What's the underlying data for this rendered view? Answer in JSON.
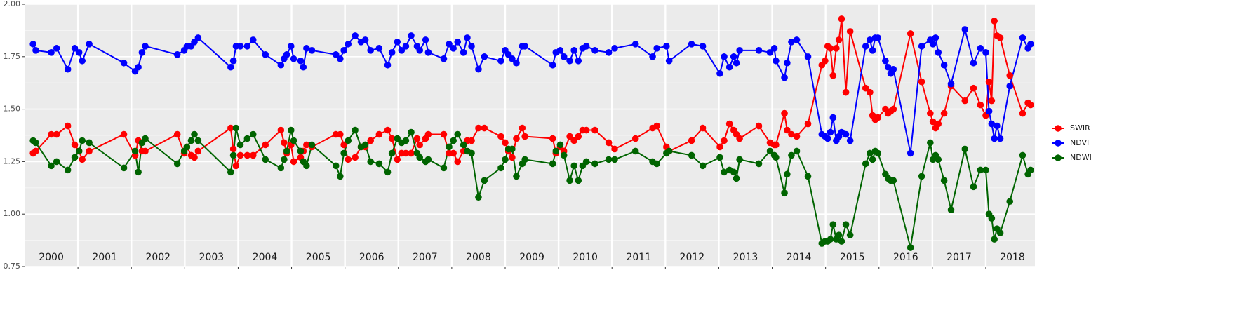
{
  "chart_data": {
    "type": "line",
    "xlim": [
      2000,
      2018.92
    ],
    "xticks": [
      2001,
      2002,
      2003,
      2004,
      2005,
      2006,
      2007,
      2008,
      2009,
      2010,
      2011,
      2012,
      2013,
      2014,
      2015,
      2016,
      2017,
      2018
    ],
    "ylim": [
      0.75,
      2.0
    ],
    "yticks": [
      0.75,
      {
        "value": 1,
        "label": "1.00"
      },
      1.25,
      {
        "value": 1.5,
        "label": "1.50"
      },
      1.75,
      {
        "value": 2,
        "label": "2.00"
      }
    ],
    "grid": true,
    "legend": "right",
    "categories": [
      "2000",
      "2001",
      "2002",
      "2003",
      "2004",
      "2005",
      "2006",
      "2007",
      "2008",
      "2009",
      "2010",
      "2011",
      "2012",
      "2013",
      "2014",
      "2015",
      "2016",
      "2017",
      "2018"
    ],
    "x": [
      2000.16,
      2000.21,
      2000.5,
      2000.6,
      2000.81,
      2000.94,
      2001.02,
      2001.08,
      2001.21,
      2001.86,
      2002.07,
      2002.13,
      2002.2,
      2002.26,
      2002.86,
      2002.99,
      2003.04,
      2003.12,
      2003.18,
      2003.25,
      2003.86,
      2003.91,
      2003.96,
      2004.04,
      2004.17,
      2004.28,
      2004.51,
      2004.8,
      2004.86,
      2004.91,
      2004.99,
      2005.04,
      2005.17,
      2005.22,
      2005.28,
      2005.38,
      2005.83,
      2005.91,
      2005.98,
      2006.06,
      2006.19,
      2006.3,
      2006.38,
      2006.48,
      2006.64,
      2006.8,
      2006.88,
      2006.98,
      2007.06,
      2007.14,
      2007.24,
      2007.35,
      2007.4,
      2007.51,
      2007.56,
      2007.85,
      2007.95,
      2008.03,
      2008.11,
      2008.22,
      2008.29,
      2008.37,
      2008.5,
      2008.61,
      2008.92,
      2009.0,
      2009.06,
      2009.13,
      2009.21,
      2009.32,
      2009.37,
      2009.89,
      2009.95,
      2010.03,
      2010.1,
      2010.21,
      2010.29,
      2010.37,
      2010.45,
      2010.52,
      2010.68,
      2010.94,
      2011.05,
      2011.44,
      2011.76,
      2011.84,
      2012.02,
      2012.07,
      2012.49,
      2012.7,
      2013.02,
      2013.1,
      2013.2,
      2013.28,
      2013.33,
      2013.39,
      2013.75,
      2013.96,
      2014.04,
      2014.07,
      2014.23,
      2014.28,
      2014.36,
      2014.46,
      2014.67,
      2014.93,
      2014.99,
      2015.04,
      2015.09,
      2015.14,
      2015.2,
      2015.25,
      2015.3,
      2015.38,
      2015.46,
      2015.75,
      2015.83,
      2015.88,
      2015.93,
      2015.98,
      2016.12,
      2016.17,
      2016.22,
      2016.27,
      2016.59,
      2016.8,
      2016.96,
      2017.01,
      2017.06,
      2017.11,
      2017.22,
      2017.35,
      2017.61,
      2017.77,
      2017.9,
      2018.0,
      2018.06,
      2018.11,
      2018.16,
      2018.21,
      2018.27,
      2018.45,
      2018.69,
      2018.79,
      2018.84
    ],
    "series": [
      {
        "name": "SWIR",
        "color": "#ff0000",
        "values": [
          1.29,
          1.3,
          1.38,
          1.38,
          1.42,
          1.33,
          1.3,
          1.26,
          1.3,
          1.38,
          1.28,
          1.35,
          1.3,
          1.3,
          1.38,
          1.29,
          1.32,
          1.28,
          1.27,
          1.3,
          1.41,
          1.31,
          1.23,
          1.28,
          1.28,
          1.28,
          1.33,
          1.4,
          1.34,
          1.29,
          1.33,
          1.25,
          1.27,
          1.3,
          1.33,
          1.32,
          1.38,
          1.38,
          1.33,
          1.26,
          1.27,
          1.32,
          1.32,
          1.35,
          1.38,
          1.4,
          1.36,
          1.26,
          1.29,
          1.29,
          1.29,
          1.36,
          1.33,
          1.36,
          1.38,
          1.38,
          1.29,
          1.29,
          1.25,
          1.3,
          1.35,
          1.35,
          1.41,
          1.41,
          1.37,
          1.34,
          1.3,
          1.27,
          1.36,
          1.41,
          1.37,
          1.36,
          1.29,
          1.32,
          1.3,
          1.37,
          1.35,
          1.37,
          1.4,
          1.4,
          1.4,
          1.34,
          1.31,
          1.36,
          1.41,
          1.42,
          1.32,
          1.3,
          1.35,
          1.41,
          1.32,
          1.35,
          1.43,
          1.4,
          1.38,
          1.36,
          1.42,
          1.34,
          1.33,
          1.33,
          1.48,
          1.4,
          1.38,
          1.37,
          1.43,
          1.71,
          1.73,
          1.8,
          1.79,
          1.66,
          1.79,
          1.83,
          1.93,
          1.58,
          1.87,
          1.6,
          1.58,
          1.47,
          1.45,
          1.46,
          1.5,
          1.48,
          1.49,
          1.5,
          1.86,
          1.63,
          1.48,
          1.44,
          1.41,
          1.43,
          1.48,
          1.61,
          1.54,
          1.6,
          1.52,
          1.47,
          1.63,
          1.54,
          1.92,
          1.85,
          1.84,
          1.66,
          1.48,
          1.53,
          1.52
        ]
      },
      {
        "name": "NDVI",
        "color": "#0000ff",
        "values": [
          1.81,
          1.78,
          1.77,
          1.79,
          1.69,
          1.79,
          1.77,
          1.73,
          1.81,
          1.72,
          1.68,
          1.7,
          1.77,
          1.8,
          1.76,
          1.78,
          1.8,
          1.8,
          1.82,
          1.84,
          1.7,
          1.73,
          1.8,
          1.8,
          1.8,
          1.83,
          1.76,
          1.71,
          1.74,
          1.76,
          1.8,
          1.74,
          1.73,
          1.7,
          1.79,
          1.78,
          1.76,
          1.74,
          1.78,
          1.81,
          1.85,
          1.82,
          1.83,
          1.78,
          1.79,
          1.71,
          1.77,
          1.82,
          1.78,
          1.8,
          1.85,
          1.8,
          1.78,
          1.83,
          1.77,
          1.74,
          1.81,
          1.79,
          1.82,
          1.77,
          1.84,
          1.8,
          1.69,
          1.75,
          1.73,
          1.78,
          1.76,
          1.74,
          1.72,
          1.8,
          1.8,
          1.71,
          1.77,
          1.78,
          1.75,
          1.73,
          1.78,
          1.73,
          1.79,
          1.8,
          1.78,
          1.77,
          1.79,
          1.81,
          1.75,
          1.79,
          1.8,
          1.73,
          1.81,
          1.8,
          1.67,
          1.75,
          1.7,
          1.75,
          1.72,
          1.78,
          1.78,
          1.77,
          1.79,
          1.73,
          1.65,
          1.72,
          1.82,
          1.83,
          1.75,
          1.38,
          1.37,
          1.36,
          1.39,
          1.46,
          1.35,
          1.37,
          1.39,
          1.38,
          1.35,
          1.8,
          1.83,
          1.78,
          1.84,
          1.84,
          1.73,
          1.7,
          1.67,
          1.69,
          1.29,
          1.8,
          1.83,
          1.81,
          1.84,
          1.77,
          1.71,
          1.62,
          1.88,
          1.72,
          1.79,
          1.77,
          1.49,
          1.43,
          1.36,
          1.42,
          1.36,
          1.61,
          1.84,
          1.79,
          1.81
        ]
      },
      {
        "name": "NDWI",
        "color": "#006400",
        "values": [
          1.35,
          1.34,
          1.23,
          1.25,
          1.21,
          1.27,
          1.3,
          1.35,
          1.34,
          1.22,
          1.3,
          1.2,
          1.34,
          1.36,
          1.24,
          1.3,
          1.32,
          1.35,
          1.38,
          1.35,
          1.2,
          1.28,
          1.41,
          1.33,
          1.36,
          1.38,
          1.26,
          1.22,
          1.26,
          1.3,
          1.4,
          1.35,
          1.3,
          1.25,
          1.23,
          1.33,
          1.23,
          1.18,
          1.29,
          1.35,
          1.4,
          1.32,
          1.33,
          1.25,
          1.24,
          1.2,
          1.29,
          1.36,
          1.34,
          1.35,
          1.39,
          1.29,
          1.27,
          1.25,
          1.26,
          1.22,
          1.32,
          1.35,
          1.38,
          1.33,
          1.3,
          1.29,
          1.08,
          1.16,
          1.22,
          1.26,
          1.31,
          1.31,
          1.18,
          1.24,
          1.26,
          1.24,
          1.3,
          1.33,
          1.28,
          1.16,
          1.23,
          1.16,
          1.23,
          1.25,
          1.24,
          1.26,
          1.26,
          1.3,
          1.25,
          1.24,
          1.29,
          1.3,
          1.28,
          1.23,
          1.27,
          1.2,
          1.21,
          1.2,
          1.17,
          1.26,
          1.24,
          1.3,
          1.28,
          1.27,
          1.1,
          1.19,
          1.28,
          1.3,
          1.18,
          0.86,
          0.87,
          0.87,
          0.88,
          0.95,
          0.88,
          0.9,
          0.87,
          0.95,
          0.9,
          1.24,
          1.29,
          1.26,
          1.3,
          1.29,
          1.19,
          1.17,
          1.16,
          1.16,
          0.84,
          1.18,
          1.34,
          1.26,
          1.28,
          1.26,
          1.16,
          1.02,
          1.31,
          1.13,
          1.21,
          1.21,
          1.0,
          0.98,
          0.88,
          0.93,
          0.91,
          1.06,
          1.28,
          1.19,
          1.21
        ]
      }
    ]
  }
}
